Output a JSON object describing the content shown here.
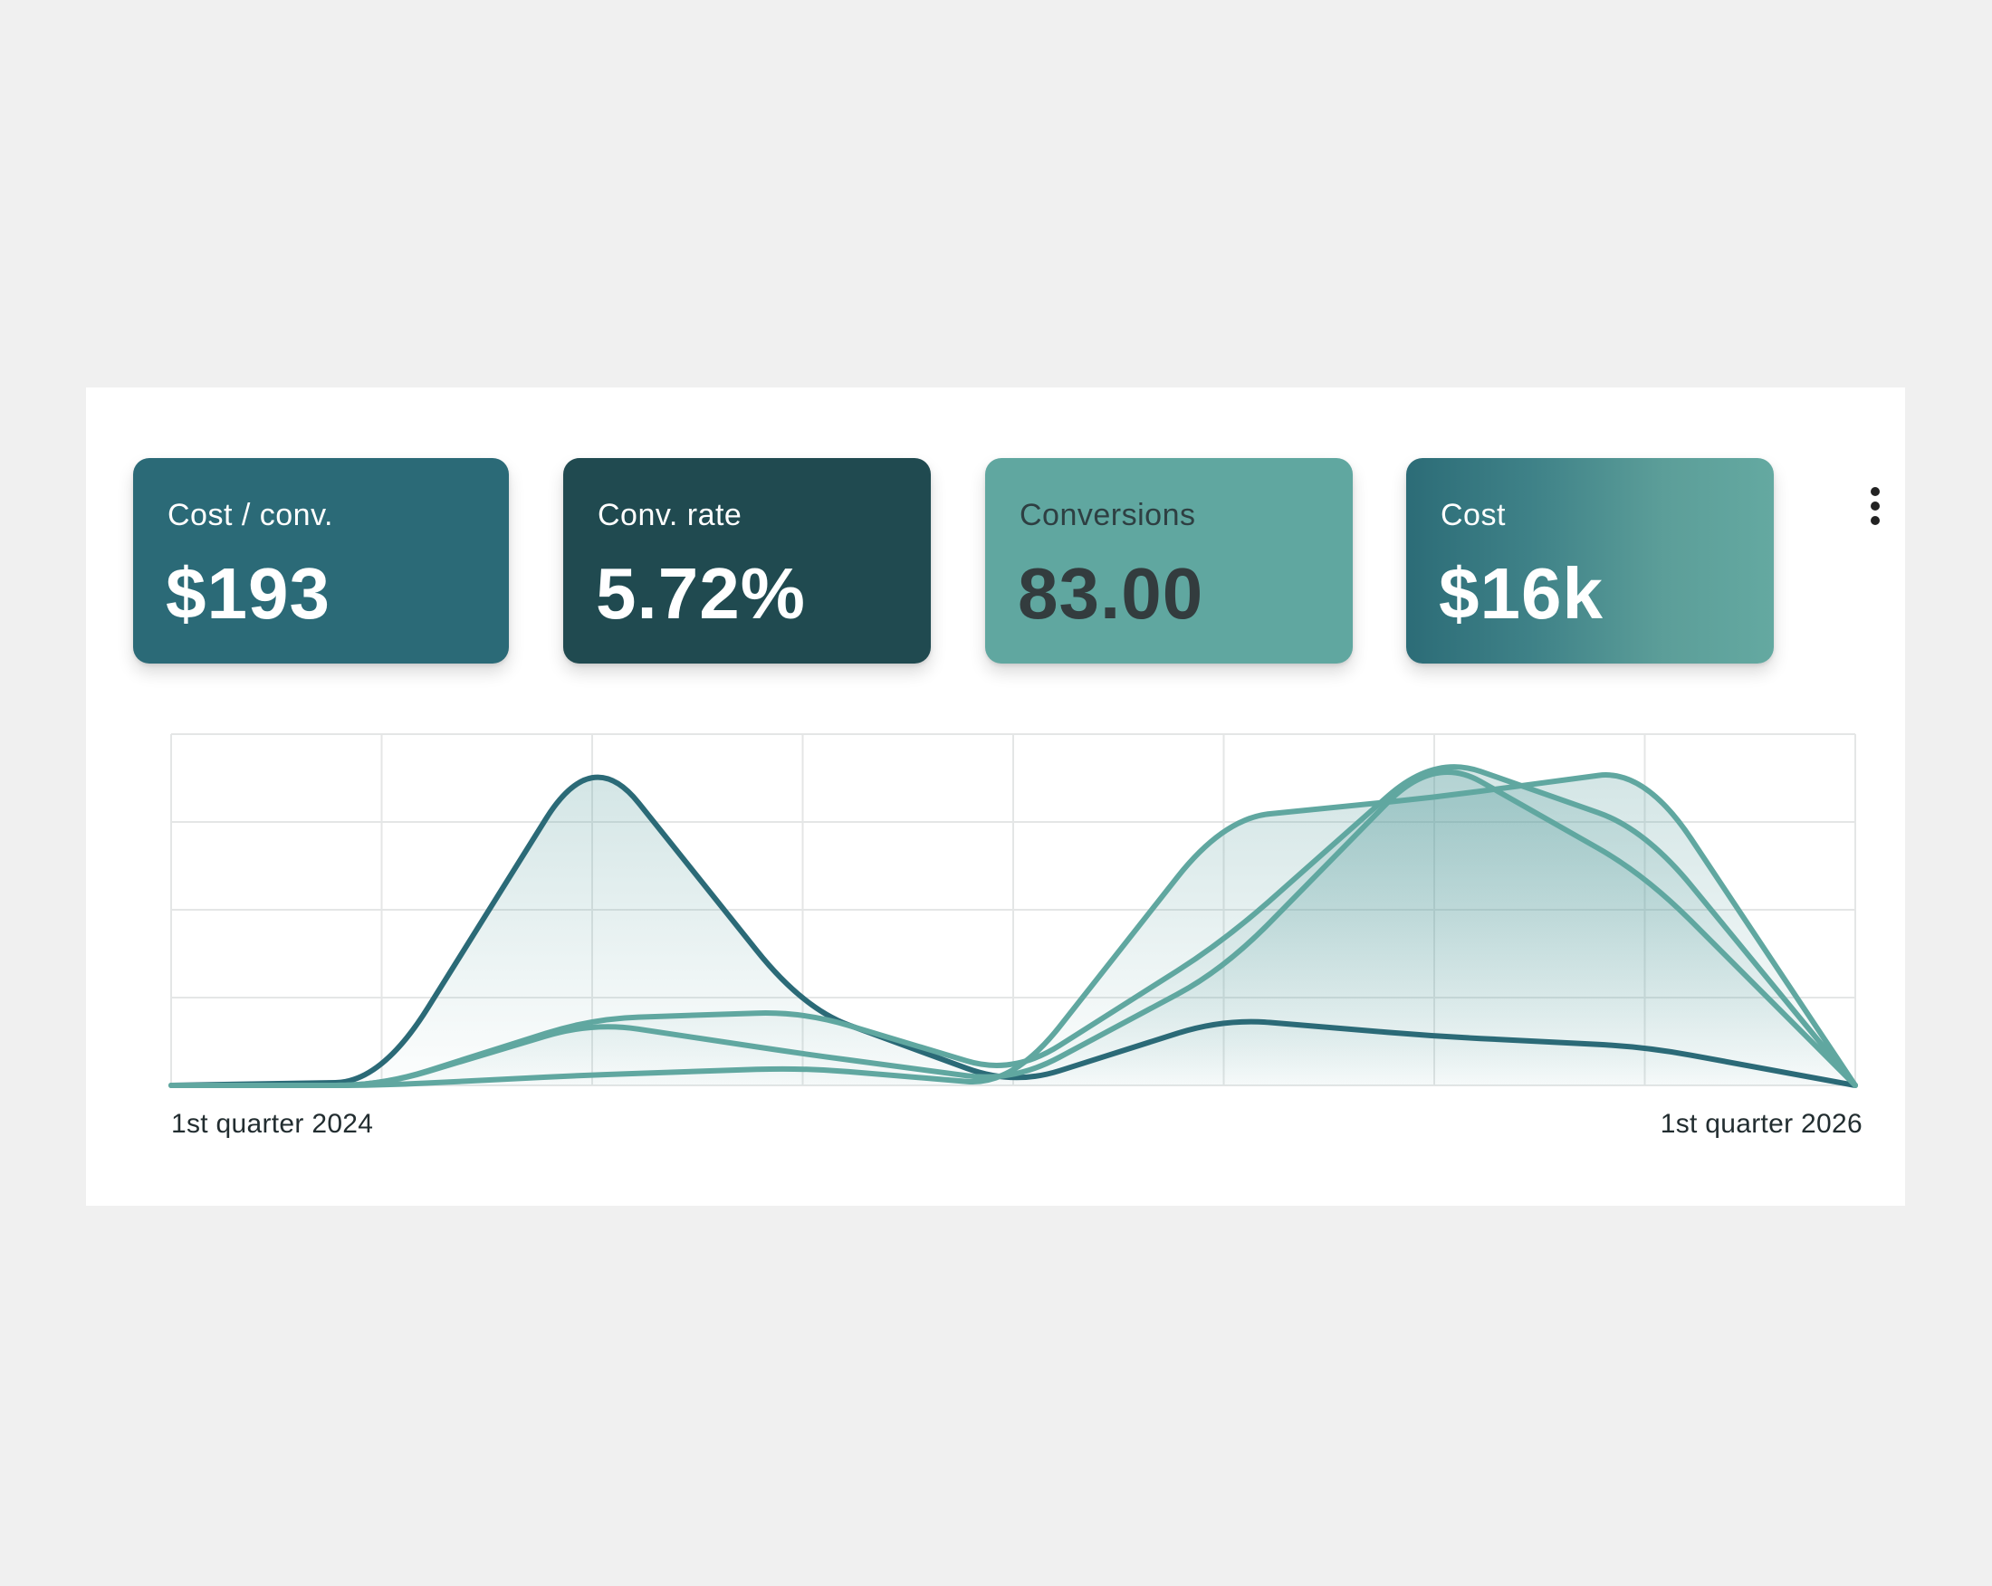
{
  "metrics": [
    {
      "label": "Cost / conv.",
      "value": "$193",
      "color": "#2b6a77"
    },
    {
      "label": "Conv. rate",
      "value": "5.72%",
      "color": "#204a50"
    },
    {
      "label": "Conversions",
      "value": "83.00",
      "color": "#60a7a0"
    },
    {
      "label": "Cost",
      "value": "$16k",
      "color": "#64a9a1"
    }
  ],
  "menu": {
    "icon": "more-vertical-icon"
  },
  "chart_data": {
    "type": "area",
    "x": [
      "1st quarter 2024",
      "",
      "",
      "",
      "",
      "",
      "",
      "",
      "1st quarter 2026"
    ],
    "tick_labels": [
      "1st quarter 2024",
      "1st quarter 2026"
    ],
    "ylim": [
      0,
      100
    ],
    "grid": true,
    "legend": "none",
    "series": [
      {
        "color": "#2b6a77",
        "values": [
          0,
          1,
          97,
          22,
          0,
          19,
          14,
          11,
          0
        ]
      },
      {
        "color": "#60a7a0",
        "values": [
          0,
          0,
          19,
          21,
          3,
          41,
          94,
          73,
          0
        ]
      },
      {
        "color": "#60a7a0",
        "values": [
          0,
          0,
          18,
          9,
          1,
          33,
          94,
          60,
          0
        ]
      },
      {
        "color": "#60a7a0",
        "values": [
          0,
          0,
          3,
          5,
          0,
          76,
          82,
          90,
          0
        ]
      }
    ]
  }
}
